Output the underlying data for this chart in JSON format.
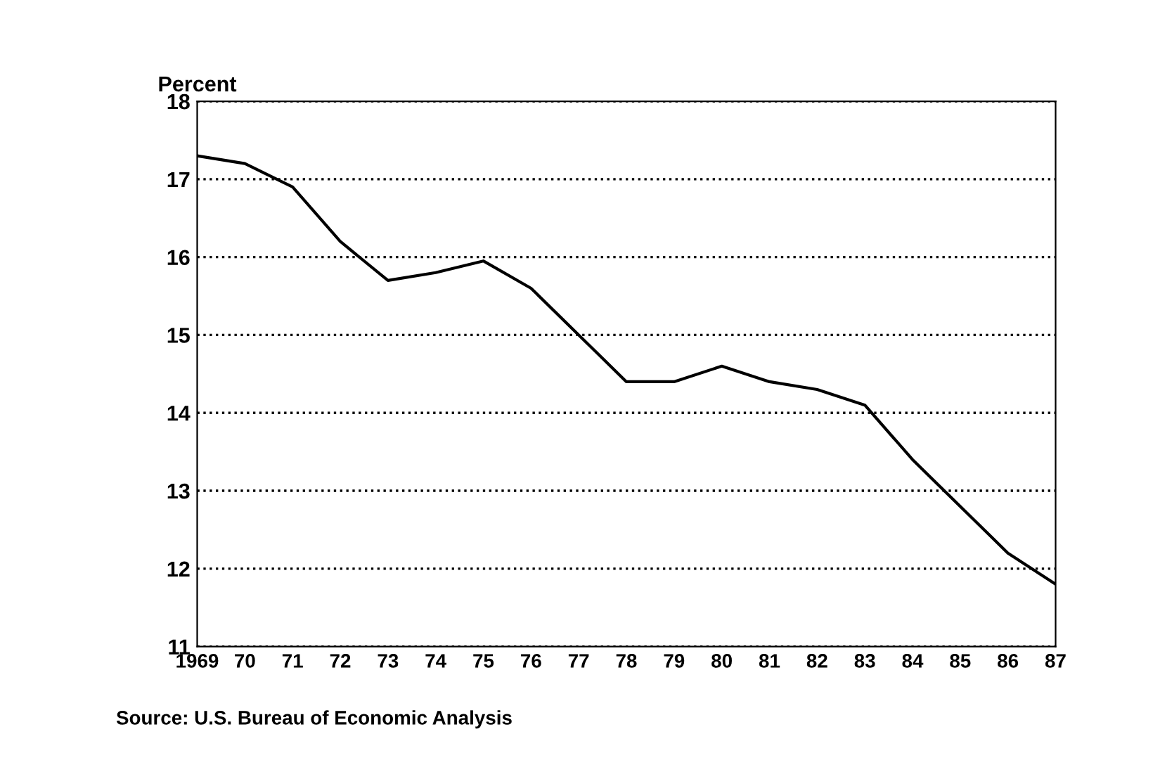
{
  "chart_data": {
    "type": "line",
    "ylabel": "Percent",
    "categories": [
      "1969",
      "70",
      "71",
      "72",
      "73",
      "74",
      "75",
      "76",
      "77",
      "78",
      "79",
      "80",
      "81",
      "82",
      "83",
      "84",
      "85",
      "86",
      "87"
    ],
    "series": [
      {
        "color": "#000000",
        "values": [
          17.3,
          17.2,
          16.9,
          16.2,
          15.7,
          15.8,
          15.95,
          15.6,
          15.0,
          14.4,
          14.4,
          14.6,
          14.4,
          14.3,
          14.1,
          13.4,
          12.8,
          12.2,
          11.8
        ]
      }
    ],
    "ylim": [
      11,
      18
    ],
    "yticks": [
      11,
      12,
      13,
      14,
      15,
      16,
      17,
      18
    ],
    "grid": "y",
    "marker": "none",
    "line_style": "solid",
    "annotations": [
      "Source: U.S. Bureau of Economic Analysis"
    ]
  }
}
